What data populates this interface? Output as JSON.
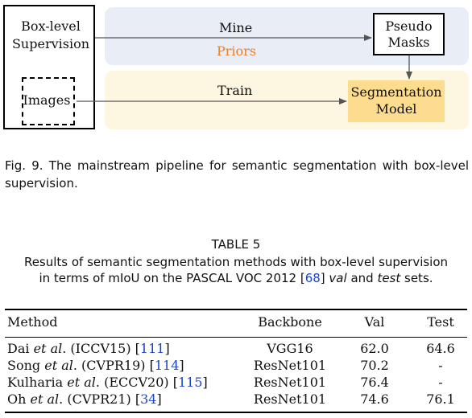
{
  "figure": {
    "box_level_title_line1": "Box-level",
    "box_level_title_line2": "Supervision",
    "images_label": "Images",
    "mine_label": "Mine",
    "priors_label": "Priors",
    "train_label": "Train",
    "pseudo_line1": "Pseudo",
    "pseudo_line2": "Masks",
    "seg_line1": "Segmentation",
    "seg_line2": "Model",
    "colors": {
      "top_band": "#e8edf6",
      "bottom_band": "#fdf6e0",
      "priors_text": "#e8812e",
      "segmentation_box": "#fcdc8e",
      "arrow": "#555555"
    }
  },
  "caption": "Fig. 9. The mainstream pipeline for semantic segmentation with box-level supervision.",
  "table": {
    "heading": "TABLE 5",
    "desc_line1": "Results of semantic segmentation methods with box-level supervision",
    "desc_line2_pre": "in terms of mIoU on the PASCAL VOC 2012 [",
    "desc_ref": "68",
    "desc_mid": "] ",
    "desc_val": "val",
    "desc_and": " and ",
    "desc_test": "test",
    "desc_end": " sets.",
    "ref_color": "#1a44c8",
    "columns": [
      "Method",
      "Backbone",
      "Val",
      "Test"
    ],
    "rows": [
      {
        "author": "Dai ",
        "etal": "et al",
        "venue": ". (ICCV15) [",
        "ref": "111",
        "close": "]",
        "backbone": "VGG16",
        "val": "62.0",
        "test": "64.6"
      },
      {
        "author": "Song ",
        "etal": "et al",
        "venue": ". (CVPR19) [",
        "ref": "114",
        "close": "]",
        "backbone": "ResNet101",
        "val": "70.2",
        "test": "-"
      },
      {
        "author": "Kulharia ",
        "etal": "et al",
        "venue": ". (ECCV20) [",
        "ref": "115",
        "close": "]",
        "backbone": "ResNet101",
        "val": "76.4",
        "test": "-"
      },
      {
        "author": "Oh ",
        "etal": "et al",
        "venue": ". (CVPR21) [",
        "ref": "34",
        "close": "]",
        "backbone": "ResNet101",
        "val": "74.6",
        "test": "76.1"
      }
    ]
  }
}
